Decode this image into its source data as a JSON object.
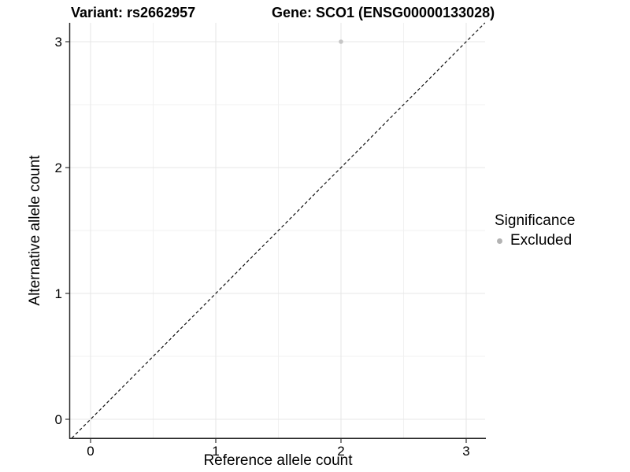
{
  "header": {
    "variant_label": "Variant: rs2662957",
    "gene_label": "Gene: SCO1 (ENSG00000133028)"
  },
  "chart_data": {
    "type": "scatter",
    "title": "Variant: rs2662957        Gene: SCO1 (ENSG00000133028)",
    "xlabel": "Reference allele count",
    "ylabel": "Alternative allele count",
    "xlim": [
      -0.15,
      3.15
    ],
    "ylim": [
      -0.15,
      3.15
    ],
    "grid": true,
    "x_ticks": [
      {
        "value": 0,
        "label": "0"
      },
      {
        "value": 1,
        "label": "1"
      },
      {
        "value": 2,
        "label": "2"
      },
      {
        "value": 3,
        "label": "3"
      }
    ],
    "y_ticks": [
      {
        "value": 0,
        "label": "0"
      },
      {
        "value": 1,
        "label": "1"
      },
      {
        "value": 2,
        "label": "2"
      },
      {
        "value": 3,
        "label": "3"
      }
    ],
    "minor_ticks": [
      0.5,
      1.5,
      2.5
    ],
    "series": [
      {
        "name": "Excluded",
        "color": "#c6c6c6",
        "points": [
          {
            "x": 2,
            "y": 3
          }
        ]
      }
    ],
    "reference_line": {
      "type": "identity",
      "x0": -0.15,
      "y0": -0.15,
      "x1": 3.15,
      "y1": 3.15,
      "style": "dashed",
      "color": "#111111"
    },
    "legend": {
      "title": "Significance",
      "position": "right",
      "entries": [
        {
          "label": "Excluded",
          "color": "#b3b3b3"
        }
      ]
    }
  },
  "style_colors": {
    "grid_major": "#e7e7e7",
    "grid_minor": "#f1f1f1",
    "axis_line": "#2b2b2b",
    "tick_mark": "#333333",
    "tick_label": "#000000"
  }
}
